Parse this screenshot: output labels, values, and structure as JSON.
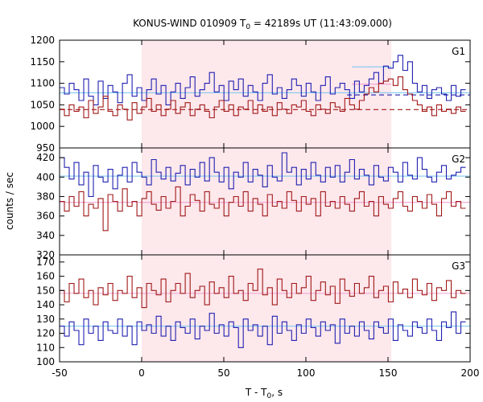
{
  "chart_data": {
    "type": "line",
    "title": "KONUS-WIND 010909 T",
    "title_sub": "0",
    "title_rest": " = 42189s UT (11:43:09.000)",
    "xlabel": "T - T",
    "xlabel_sub": "0",
    "xlabel_rest": ", s",
    "ylabel": "counts / sec",
    "xlim": [
      -50,
      200
    ],
    "x_ticks": [
      -50,
      0,
      50,
      100,
      150,
      200
    ],
    "highlight_interval": [
      0,
      152
    ],
    "colors": {
      "blue_series": "#2020b0",
      "red_series": "#a01818",
      "cyan_line": "#80c8f0",
      "pink_line": "#f0a0d0",
      "shade": "#fde8ec"
    },
    "panels": [
      {
        "label": "G1",
        "ylim": [
          950,
          1200
        ],
        "y_ticks": [
          950,
          1000,
          1050,
          1100,
          1150,
          1200
        ],
        "x_start": -50,
        "bin": 2.944,
        "series": [
          {
            "color_key": "blue_series",
            "values": [
              1090,
              1075,
              1100,
              1085,
              1060,
              1110,
              1070,
              1050,
              1105,
              1065,
              1095,
              1080,
              1055,
              1100,
              1120,
              1070,
              1090,
              1060,
              1085,
              1110,
              1075,
              1095,
              1050,
              1080,
              1100,
              1065,
              1090,
              1115,
              1070,
              1085,
              1100,
              1125,
              1080,
              1095,
              1060,
              1105,
              1085,
              1110,
              1070,
              1095,
              1080,
              1060,
              1100,
              1120,
              1075,
              1090,
              1065,
              1085,
              1110,
              1095,
              1070,
              1100,
              1080,
              1060,
              1095,
              1115,
              1075,
              1090,
              1100,
              1085,
              1065,
              1105,
              1080,
              1095,
              1110,
              1125,
              1100,
              1140,
              1135,
              1150,
              1165,
              1130,
              1150,
              1100,
              1080,
              1095,
              1065,
              1085,
              1090,
              1075,
              1060,
              1095,
              1070,
              1085
            ]
          },
          {
            "color_key": "red_series",
            "values": [
              1040,
              1025,
              1050,
              1035,
              1045,
              1020,
              1060,
              1030,
              1045,
              1070,
              1035,
              1025,
              1050,
              1040,
              1015,
              1055,
              1030,
              1045,
              1065,
              1035,
              1050,
              1025,
              1040,
              1060,
              1030,
              1045,
              1055,
              1025,
              1040,
              1050,
              1035,
              1020,
              1045,
              1060,
              1035,
              1050,
              1025,
              1045,
              1040,
              1060,
              1030,
              1050,
              1035,
              1045,
              1025,
              1055,
              1040,
              1030,
              1050,
              1045,
              1060,
              1035,
              1025,
              1050,
              1040,
              1030,
              1055,
              1045,
              1035,
              1065,
              1050,
              1040,
              1060,
              1075,
              1090,
              1080,
              1100,
              1105,
              1110,
              1095,
              1115,
              1085,
              1075,
              1060,
              1050,
              1035,
              1045,
              1025,
              1050,
              1035,
              1040,
              1030,
              1045,
              1035
            ]
          }
        ],
        "bg_lines": [
          {
            "color_key": "cyan_line",
            "style": "solid",
            "segments": [
              {
                "x0": -50,
                "x1": 200,
                "y": 1078
              }
            ]
          },
          {
            "color_key": "red_series",
            "style": "dashed",
            "segments": [
              {
                "x0": -50,
                "x1": 200,
                "y": 1039
              }
            ]
          },
          {
            "color_key": "blue_series",
            "style": "dashed",
            "segments": [
              {
                "x0": 125,
                "x1": 200,
                "y": 1073
              }
            ]
          },
          {
            "color_key": "cyan_line",
            "style": "solid",
            "segments": [
              {
                "x0": 128,
                "x1": 152,
                "y": 1138
              }
            ]
          },
          {
            "color_key": "pink_line",
            "style": "solid",
            "segments": [
              {
                "x0": 128,
                "x1": 152,
                "y": 1098
              }
            ]
          }
        ]
      },
      {
        "label": "G2",
        "ylim": [
          320,
          430
        ],
        "y_ticks": [
          320,
          340,
          360,
          380,
          400,
          420
        ],
        "x_start": -50,
        "bin": 2.944,
        "series": [
          {
            "color_key": "blue_series",
            "values": [
              420,
              410,
              398,
              415,
              392,
              405,
              380,
              412,
              400,
              395,
              408,
              388,
              402,
              410,
              395,
              415,
              405,
              400,
              392,
              418,
              405,
              398,
              410,
              396,
              404,
              412,
              392,
              408,
              400,
              415,
              396,
              420,
              405,
              395,
              410,
              388,
              405,
              400,
              415,
              395,
              408,
              402,
              390,
              412,
              400,
              396,
              425,
              405,
              410,
              392,
              408,
              398,
              415,
              402,
              395,
              410,
              400,
              412,
              395,
              405,
              418,
              398,
              408,
              402,
              392,
              412,
              400,
              396,
              410,
              405,
              395,
              415,
              402,
              398,
              420,
              408,
              400,
              395,
              405,
              412,
              398,
              402,
              405,
              410
            ]
          },
          {
            "color_key": "red_series",
            "values": [
              375,
              365,
              380,
              370,
              385,
              360,
              372,
              368,
              378,
              345,
              382,
              375,
              365,
              388,
              370,
              375,
              360,
              378,
              385,
              372,
              366,
              380,
              368,
              375,
              390,
              360,
              370,
              382,
              376,
              365,
              385,
              372,
              368,
              378,
              360,
              374,
              380,
              370,
              385,
              365,
              378,
              372,
              360,
              382,
              370,
              375,
              368,
              385,
              376,
              365,
              380,
              372,
              378,
              360,
              385,
              370,
              375,
              368,
              380,
              372,
              365,
              378,
              385,
              370,
              375,
              360,
              380,
              372,
              368,
              378,
              385,
              370,
              365,
              380,
              375,
              368,
              382,
              372,
              360,
              378,
              385,
              370,
              375,
              368
            ]
          }
        ],
        "bg_lines": [
          {
            "color_key": "cyan_line",
            "style": "solid",
            "segments": [
              {
                "x0": -50,
                "x1": 200,
                "y": 401
              }
            ]
          },
          {
            "color_key": "pink_line",
            "style": "solid",
            "segments": [
              {
                "x0": -50,
                "x1": 200,
                "y": 374
              }
            ]
          }
        ]
      },
      {
        "label": "G3",
        "ylim": [
          100,
          175
        ],
        "y_ticks": [
          100,
          110,
          120,
          130,
          140,
          150,
          160,
          170
        ],
        "x_start": -50,
        "bin": 2.944,
        "series": [
          {
            "color_key": "red_series",
            "values": [
              150,
              142,
              155,
              148,
              158,
              145,
              150,
              140,
              152,
              147,
              155,
              143,
              150,
              148,
              160,
              145,
              152,
              138,
              155,
              150,
              147,
              158,
              142,
              150,
              155,
              148,
              162,
              145,
              150,
              153,
              140,
              156,
              148,
              152,
              145,
              160,
              148,
              150,
              143,
              155,
              150,
              165,
              147,
              152,
              140,
              158,
              150,
              145,
              155,
              148,
              152,
              160,
              143,
              150,
              156,
              147,
              153,
              141,
              158,
              150,
              146,
              155,
              148,
              152,
              160,
              145,
              150,
              153,
              142,
              156,
              148,
              151,
              145,
              158,
              150,
              147,
              155,
              143,
              152,
              150,
              157,
              145,
              150,
              148
            ]
          },
          {
            "color_key": "blue_series",
            "values": [
              125,
              118,
              128,
              122,
              112,
              130,
              120,
              125,
              115,
              128,
              122,
              120,
              130,
              118,
              125,
              112,
              128,
              122,
              126,
              120,
              132,
              118,
              125,
              115,
              128,
              124,
              120,
              130,
              116,
              125,
              122,
              134,
              120,
              126,
              118,
              128,
              124,
              110,
              130,
              122,
              126,
              118,
              125,
              112,
              132,
              120,
              128,
              122,
              115,
              126,
              120,
              130,
              124,
              118,
              128,
              122,
              126,
              113,
              130,
              120,
              125,
              118,
              128,
              122,
              116,
              128,
              124,
              120,
              130,
              115,
              126,
              122,
              118,
              128,
              124,
              120,
              130,
              122,
              115,
              128,
              124,
              135,
              120,
              128
            ]
          }
        ],
        "bg_lines": [
          {
            "color_key": "pink_line",
            "style": "solid",
            "segments": [
              {
                "x0": -50,
                "x1": 200,
                "y": 148
              }
            ]
          },
          {
            "color_key": "cyan_line",
            "style": "solid",
            "segments": [
              {
                "x0": -50,
                "x1": 200,
                "y": 125
              }
            ]
          }
        ]
      }
    ]
  }
}
